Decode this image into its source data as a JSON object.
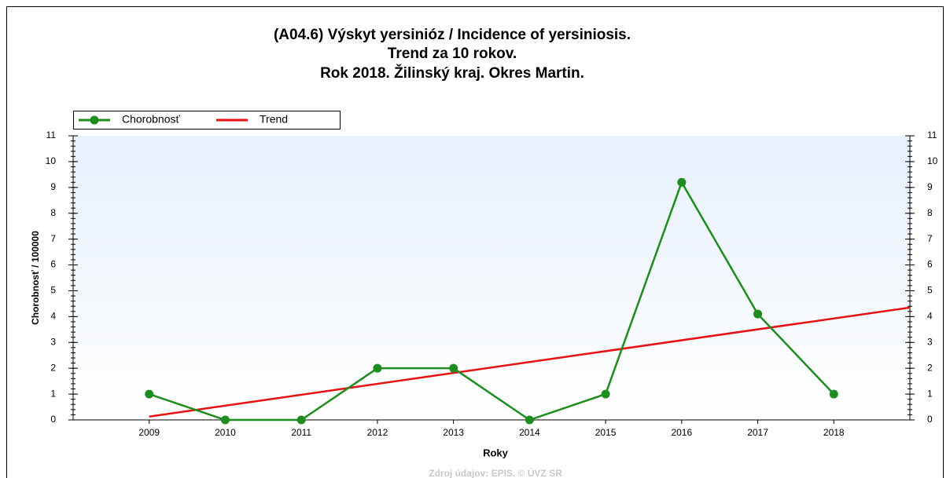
{
  "chart_data": {
    "type": "line",
    "title": [
      "(A04.6) Výskyt yersinióz / Incidence of yersiniosis.",
      "Trend za 10 rokov.",
      "Rok 2018. Žilinský kraj. Okres Martin."
    ],
    "x_label": "Roky",
    "y_label": "Chorobnosť / 100000",
    "footer": "Zdroj údajov: EPIS. © ÚVZ SR",
    "x": [
      2009,
      2010,
      2011,
      2012,
      2013,
      2014,
      2015,
      2016,
      2017,
      2018
    ],
    "xlim": [
      2008,
      2019
    ],
    "xticks": [
      2009,
      2010,
      2011,
      2012,
      2013,
      2014,
      2015,
      2016,
      2017,
      2018
    ],
    "ylim": [
      0,
      11
    ],
    "yticks": [
      0,
      1,
      2,
      3,
      4,
      5,
      6,
      7,
      8,
      9,
      10,
      11
    ],
    "y2lim": [
      0,
      11
    ],
    "y2ticks": [
      0,
      1,
      2,
      3,
      4,
      5,
      6,
      7,
      8,
      9,
      10,
      11
    ],
    "legend": "top-left",
    "series": [
      {
        "name": "Chorobnosť",
        "color": "#1e8c1e",
        "marker": "circle",
        "values": [
          1,
          0,
          0,
          2,
          2,
          0,
          1,
          9.2,
          4.1,
          1
        ]
      },
      {
        "name": "Trend",
        "color": "#e81010",
        "x": [
          2009,
          2019
        ],
        "values": [
          0.13,
          4.35
        ]
      }
    ]
  }
}
